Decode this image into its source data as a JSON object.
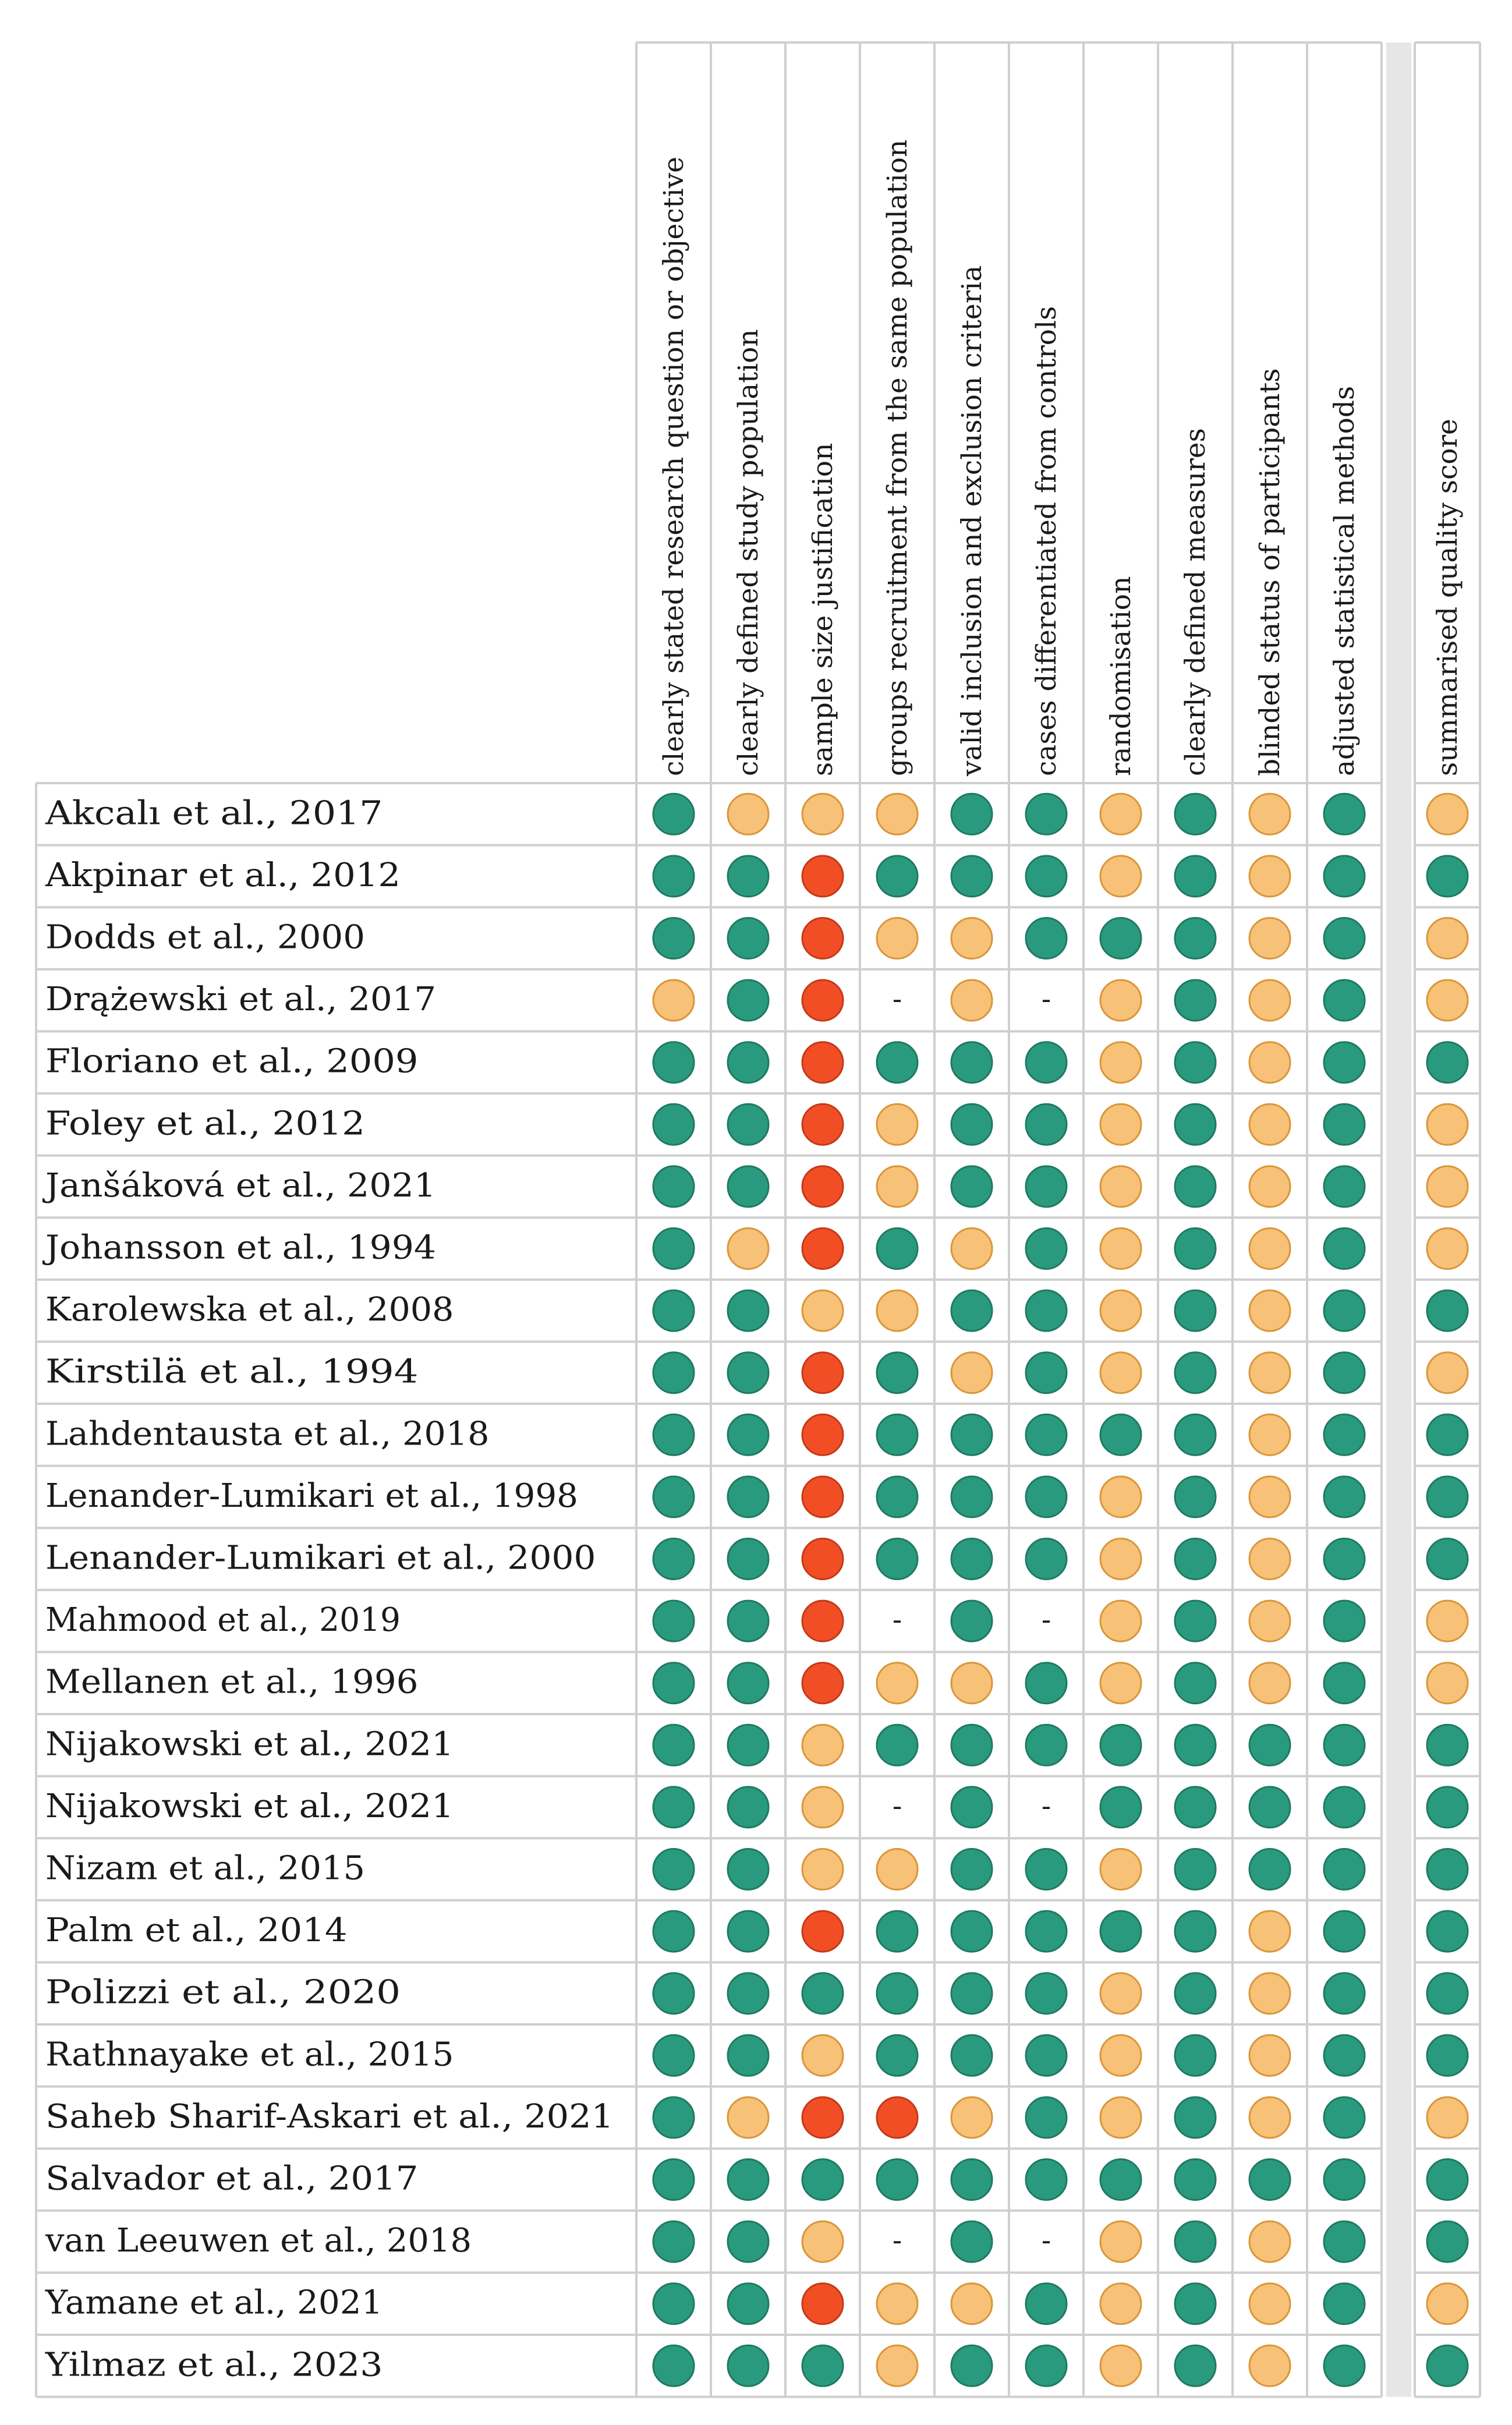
{
  "chart_data": {
    "type": "table",
    "title": "",
    "legend": {
      "green": "#2a9a7e",
      "yellow": "#f7c177",
      "red": "#f24e25"
    },
    "colors": {
      "green": "#2a9a7e",
      "yellow": "#f7c177",
      "red": "#f24e25",
      "green_stroke": "#1f7a63",
      "yellow_stroke": "#d9963a",
      "red_stroke": "#c43a18",
      "grid_line": "#cfcfcf",
      "separator": "#e6e6e6"
    },
    "columns": [
      "clearly stated research question or objective",
      "clearly defined study population",
      "sample size justification",
      "groups recruitment from the same population",
      "valid inclusion and exclusion criteria",
      "cases differentiated from controls",
      "randomisation",
      "clearly defined measures",
      "blinded status of participants",
      "adjusted statistical methods"
    ],
    "summary_column": "summarised quality score",
    "rows": [
      {
        "study": "Akcalı et al., 2017",
        "ratings": [
          "green",
          "yellow",
          "yellow",
          "yellow",
          "green",
          "green",
          "yellow",
          "green",
          "yellow",
          "green"
        ],
        "summary": "yellow"
      },
      {
        "study": "Akpinar et al., 2012",
        "ratings": [
          "green",
          "green",
          "red",
          "green",
          "green",
          "green",
          "yellow",
          "green",
          "yellow",
          "green"
        ],
        "summary": "green"
      },
      {
        "study": "Dodds et al., 2000",
        "ratings": [
          "green",
          "green",
          "red",
          "yellow",
          "yellow",
          "green",
          "green",
          "green",
          "yellow",
          "green"
        ],
        "summary": "yellow"
      },
      {
        "study": "Drążewski et al., 2017",
        "ratings": [
          "yellow",
          "green",
          "red",
          "-",
          "yellow",
          "-",
          "yellow",
          "green",
          "yellow",
          "green"
        ],
        "summary": "yellow"
      },
      {
        "study": "Floriano et al., 2009",
        "ratings": [
          "green",
          "green",
          "red",
          "green",
          "green",
          "green",
          "yellow",
          "green",
          "yellow",
          "green"
        ],
        "summary": "green"
      },
      {
        "study": "Foley et al., 2012",
        "ratings": [
          "green",
          "green",
          "red",
          "yellow",
          "green",
          "green",
          "yellow",
          "green",
          "yellow",
          "green"
        ],
        "summary": "yellow"
      },
      {
        "study": "Janšáková et al., 2021",
        "ratings": [
          "green",
          "green",
          "red",
          "yellow",
          "green",
          "green",
          "yellow",
          "green",
          "yellow",
          "green"
        ],
        "summary": "yellow"
      },
      {
        "study": "Johansson et al., 1994",
        "ratings": [
          "green",
          "yellow",
          "red",
          "green",
          "yellow",
          "green",
          "yellow",
          "green",
          "yellow",
          "green"
        ],
        "summary": "yellow"
      },
      {
        "study": "Karolewska et al., 2008",
        "ratings": [
          "green",
          "green",
          "yellow",
          "yellow",
          "green",
          "green",
          "yellow",
          "green",
          "yellow",
          "green"
        ],
        "summary": "green"
      },
      {
        "study": "Kirstilä et al., 1994",
        "ratings": [
          "green",
          "green",
          "red",
          "green",
          "yellow",
          "green",
          "yellow",
          "green",
          "yellow",
          "green"
        ],
        "summary": "yellow"
      },
      {
        "study": "Lahdentausta et al., 2018",
        "ratings": [
          "green",
          "green",
          "red",
          "green",
          "green",
          "green",
          "green",
          "green",
          "yellow",
          "green"
        ],
        "summary": "green"
      },
      {
        "study": "Lenander-Lumikari et al., 1998",
        "ratings": [
          "green",
          "green",
          "red",
          "green",
          "green",
          "green",
          "yellow",
          "green",
          "yellow",
          "green"
        ],
        "summary": "green"
      },
      {
        "study": "Lenander-Lumikari  et al., 2000",
        "ratings": [
          "green",
          "green",
          "red",
          "green",
          "green",
          "green",
          "yellow",
          "green",
          "yellow",
          "green"
        ],
        "summary": "green"
      },
      {
        "study": "Mahmood et al., 2019",
        "ratings": [
          "green",
          "green",
          "red",
          "-",
          "green",
          "-",
          "yellow",
          "green",
          "yellow",
          "green"
        ],
        "summary": "yellow"
      },
      {
        "study": "Mellanen et al., 1996",
        "ratings": [
          "green",
          "green",
          "red",
          "yellow",
          "yellow",
          "green",
          "yellow",
          "green",
          "yellow",
          "green"
        ],
        "summary": "yellow"
      },
      {
        "study": "Nijakowski et al., 2021",
        "ratings": [
          "green",
          "green",
          "yellow",
          "green",
          "green",
          "green",
          "green",
          "green",
          "green",
          "green"
        ],
        "summary": "green"
      },
      {
        "study": "Nijakowski et al., 2021",
        "ratings": [
          "green",
          "green",
          "yellow",
          "-",
          "green",
          "-",
          "green",
          "green",
          "green",
          "green"
        ],
        "summary": "green"
      },
      {
        "study": "Nizam et al., 2015",
        "ratings": [
          "green",
          "green",
          "yellow",
          "yellow",
          "green",
          "green",
          "yellow",
          "green",
          "green",
          "green"
        ],
        "summary": "green"
      },
      {
        "study": "Palm et al., 2014",
        "ratings": [
          "green",
          "green",
          "red",
          "green",
          "green",
          "green",
          "green",
          "green",
          "yellow",
          "green"
        ],
        "summary": "green"
      },
      {
        "study": "Polizzi et al., 2020",
        "ratings": [
          "green",
          "green",
          "green",
          "green",
          "green",
          "green",
          "yellow",
          "green",
          "yellow",
          "green"
        ],
        "summary": "green"
      },
      {
        "study": "Rathnayake et al., 2015",
        "ratings": [
          "green",
          "green",
          "yellow",
          "green",
          "green",
          "green",
          "yellow",
          "green",
          "yellow",
          "green"
        ],
        "summary": "green"
      },
      {
        "study": "Saheb Sharif-Askari et al., 2021",
        "ratings": [
          "green",
          "yellow",
          "red",
          "red",
          "yellow",
          "green",
          "yellow",
          "green",
          "yellow",
          "green"
        ],
        "summary": "yellow"
      },
      {
        "study": "Salvador et al., 2017",
        "ratings": [
          "green",
          "green",
          "green",
          "green",
          "green",
          "green",
          "green",
          "green",
          "green",
          "green"
        ],
        "summary": "green"
      },
      {
        "study": "van Leeuwen et al., 2018",
        "ratings": [
          "green",
          "green",
          "yellow",
          "-",
          "green",
          "-",
          "yellow",
          "green",
          "yellow",
          "green"
        ],
        "summary": "green"
      },
      {
        "study": "Yamane et al., 2021",
        "ratings": [
          "green",
          "green",
          "red",
          "yellow",
          "yellow",
          "green",
          "yellow",
          "green",
          "yellow",
          "green"
        ],
        "summary": "yellow"
      },
      {
        "study": "Yilmaz et al., 2023",
        "ratings": [
          "green",
          "green",
          "green",
          "yellow",
          "green",
          "green",
          "yellow",
          "green",
          "yellow",
          "green"
        ],
        "summary": "green"
      }
    ]
  }
}
